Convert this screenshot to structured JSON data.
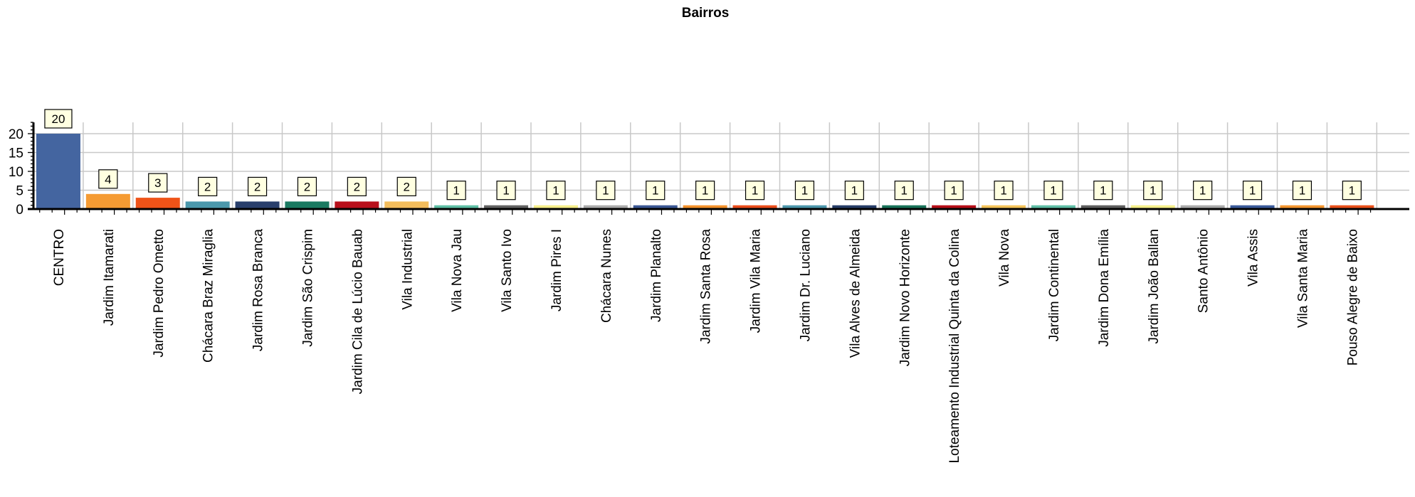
{
  "chart_data": {
    "type": "bar",
    "title": "Bairros",
    "xlabel": "",
    "ylabel": "",
    "ylim": [
      0,
      23
    ],
    "yticks": [
      0,
      5,
      10,
      15,
      20
    ],
    "grid": true,
    "legend": "none",
    "categories": [
      "CENTRO",
      "Jardim Itamarati",
      "Jardim Pedro Ometto",
      "Chácara Braz Miraglia",
      "Jardim Rosa Branca",
      "Jardim São Crispim",
      "Jardim Cila de Lúcio Bauab",
      "Vila Industrial",
      "Vila Nova Jau",
      "Vila Santo Ivo",
      "Jardim Pires I",
      "Chácara Nunes",
      "Jardim Planalto",
      "Jardim Santa Rosa",
      "Jardim Vila Maria",
      "Jardim Dr. Luciano",
      "Vila Alves de Almeida",
      "Jardim Novo Horizonte",
      "Loteamento Industrial Quinta da Colina",
      "Vila Nova",
      "Jardim Continental",
      "Jardim Dona Emília",
      "Jardim João Ballan",
      "Santo Antônio",
      "Vila Assis",
      "Vila Santa Maria",
      "Pouso Alegre de Baixo"
    ],
    "values": [
      20,
      4,
      3,
      2,
      2,
      2,
      2,
      2,
      1,
      1,
      1,
      1,
      1,
      1,
      1,
      1,
      1,
      1,
      1,
      1,
      1,
      1,
      1,
      1,
      1,
      1,
      1
    ],
    "data_labels": [
      "20",
      "4",
      "3",
      "2",
      "2",
      "2",
      "2",
      "2",
      "1",
      "1",
      "1",
      "1",
      "1",
      "1",
      "1",
      "1",
      "1",
      "1",
      "1",
      "1",
      "1",
      "1",
      "1",
      "1",
      "1",
      "1",
      "1"
    ],
    "colors": [
      "#4465a0",
      "#f59b33",
      "#ef5318",
      "#4b98ac",
      "#293f6c",
      "#1a7a61",
      "#b8101b",
      "#f3bd5c",
      "#5fbfa5",
      "#626262",
      "#f6ee8a",
      "#acacac",
      "#3b5794",
      "#f4922c",
      "#ea4d1b",
      "#4d97ac",
      "#263d67",
      "#187259",
      "#b60e18",
      "#f4c35a",
      "#60bea6",
      "#5f5f5f",
      "#f5ef8a",
      "#aaaaaa",
      "#3a5a9a",
      "#f3952f",
      "#e9501b"
    ]
  }
}
